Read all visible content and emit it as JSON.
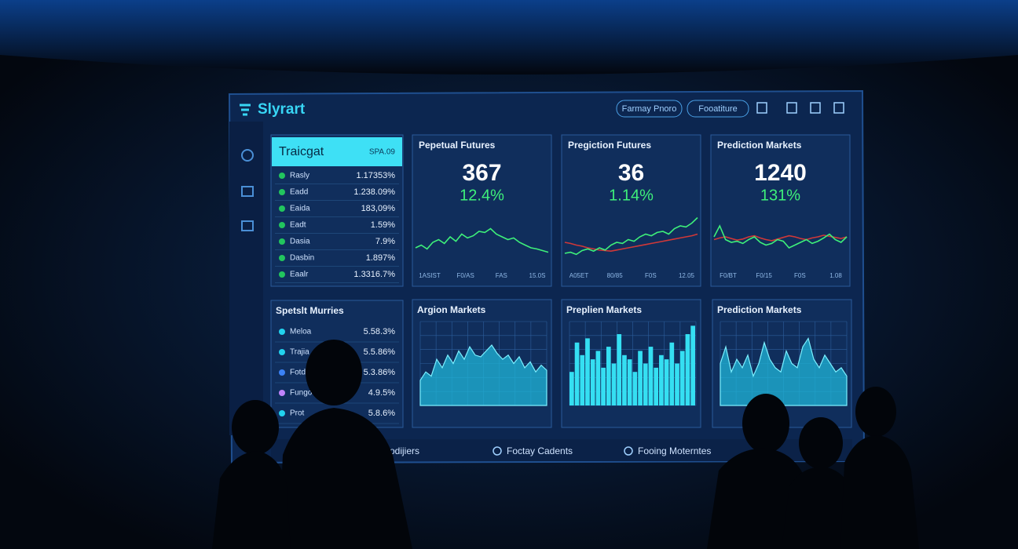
{
  "header": {
    "logo": "Slyrart",
    "buttons": [
      "Farmay Pnoro",
      "Fooatiture"
    ]
  },
  "list_panel": {
    "title": "Traicgat",
    "header_value": "SPA.09",
    "rows": [
      {
        "name": "Rasly",
        "value": "1.17353%",
        "color": "#22c55e"
      },
      {
        "name": "Eadd",
        "value": "1.238.09%",
        "color": "#22c55e"
      },
      {
        "name": "Eaida",
        "value": "183,09%",
        "color": "#22c55e"
      },
      {
        "name": "Eadt",
        "value": "1.59%",
        "color": "#22c55e"
      },
      {
        "name": "Dasia",
        "value": "7.9%",
        "color": "#22c55e"
      },
      {
        "name": "Dasbin",
        "value": "1.897%",
        "color": "#22c55e"
      },
      {
        "name": "Eaalr",
        "value": "1.3316.7%",
        "color": "#22c55e"
      }
    ]
  },
  "top_panels": [
    {
      "title": "Pepetual Futures",
      "value": "367",
      "change": "12.4%",
      "x_labels": [
        "1ASIST",
        "F0/AS",
        "FAS",
        "15.0S"
      ],
      "values": [
        30,
        35,
        28,
        40,
        45,
        38,
        50,
        42,
        55,
        48,
        52,
        60,
        58,
        65,
        55,
        50,
        45,
        48,
        40,
        35,
        30,
        28,
        25,
        22
      ]
    },
    {
      "title": "Pregiction Futures",
      "value": "36",
      "change": "1.14%",
      "x_labels": [
        "A05ET",
        "80/85",
        "F0S",
        "12.05"
      ],
      "values": [
        20,
        22,
        18,
        25,
        28,
        24,
        30,
        26,
        35,
        40,
        38,
        45,
        42,
        50,
        55,
        52,
        58,
        60,
        55,
        65,
        70,
        68,
        75,
        85
      ],
      "overlay": [
        40,
        38,
        35,
        33,
        30,
        28,
        26,
        25,
        24,
        26,
        28,
        30,
        32,
        34,
        36,
        38,
        40,
        42,
        44,
        46,
        48,
        50,
        52,
        55
      ]
    },
    {
      "title": "Prediction Markets",
      "value": "1240",
      "change": "131%",
      "x_labels": [
        "F0/BT",
        "F0/15",
        "F0S",
        "1.08"
      ],
      "values": [
        50,
        70,
        45,
        40,
        42,
        38,
        45,
        50,
        40,
        35,
        38,
        45,
        42,
        30,
        35,
        40,
        45,
        38,
        42,
        48,
        55,
        45,
        40,
        50
      ],
      "overlay": [
        45,
        48,
        50,
        47,
        44,
        46,
        50,
        52,
        48,
        45,
        43,
        46,
        49,
        52,
        50,
        47,
        45,
        48,
        50,
        53,
        51,
        49,
        47,
        50
      ]
    }
  ],
  "lower_list": {
    "title": "Spetslt Murries",
    "rows": [
      {
        "name": "Meloa",
        "value": "5.58.3%",
        "color": "#22d3ee"
      },
      {
        "name": "Trajia",
        "value": "5.5.86%",
        "color": "#22d3ee"
      },
      {
        "name": "Fotdo",
        "value": "5.3.86%",
        "color": "#3b82f6"
      },
      {
        "name": "Fungo",
        "value": "4.9.5%",
        "color": "#c084fc"
      },
      {
        "name": "Prot",
        "value": "5.8.6%",
        "color": "#22d3ee"
      }
    ]
  },
  "bottom_panels": [
    {
      "title": "Argion Markets",
      "style": "area",
      "values": [
        30,
        40,
        35,
        55,
        45,
        60,
        50,
        65,
        55,
        70,
        60,
        58,
        65,
        72,
        62,
        55,
        60,
        50,
        58,
        45,
        52,
        40,
        48,
        42
      ]
    },
    {
      "title": "Preplien Markets",
      "style": "bar",
      "values": [
        40,
        75,
        60,
        80,
        55,
        65,
        45,
        70,
        50,
        85,
        60,
        55,
        40,
        65,
        50,
        70,
        45,
        60,
        55,
        75,
        50,
        65,
        85,
        95
      ]
    },
    {
      "title": "Prediction Markets",
      "style": "area",
      "values": [
        50,
        70,
        40,
        55,
        45,
        60,
        35,
        50,
        75,
        55,
        45,
        40,
        65,
        50,
        45,
        70,
        80,
        55,
        45,
        60,
        50,
        40,
        45,
        35
      ]
    }
  ],
  "footer": {
    "items": [
      "Prodijiers",
      "Foctay Cadents",
      "Fooing Moterntes"
    ]
  }
}
